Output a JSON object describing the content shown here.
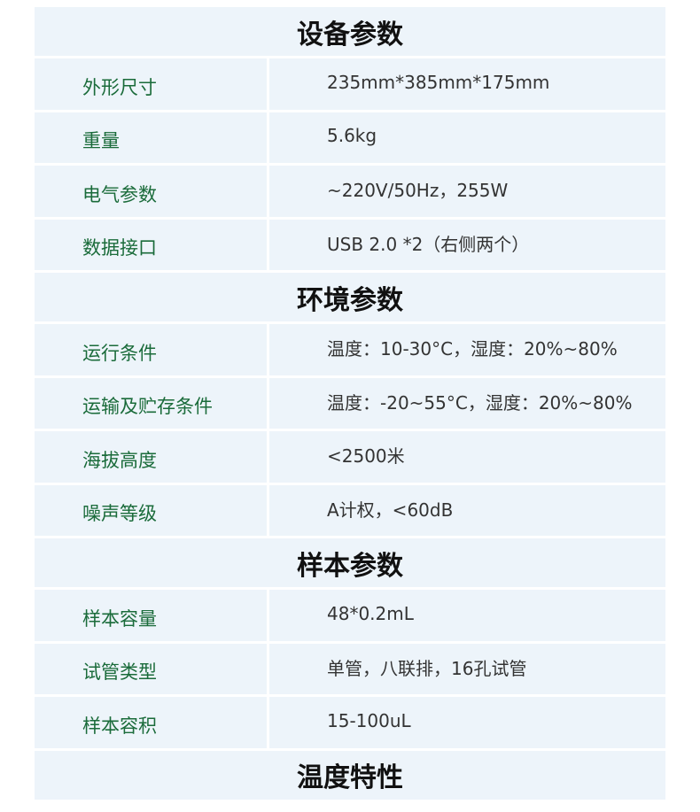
{
  "sections": [
    {
      "title": "设备参数",
      "rows": [
        {
          "label": "外形尺寸",
          "value": "235mm*385mm*175mm"
        },
        {
          "label": "重量",
          "value": "5.6kg"
        },
        {
          "label": "电气参数",
          "value": "~220V/50Hz，255W"
        },
        {
          "label": "数据接口",
          "value": "USB 2.0 *2（右侧两个）"
        }
      ]
    },
    {
      "title": "环境参数",
      "rows": [
        {
          "label": "运行条件",
          "value": "温度：10-30°C，湿度：20%~80%"
        },
        {
          "label": "运输及贮存条件",
          "value": "温度：-20~55°C，湿度：20%~80%"
        },
        {
          "label": "海拔高度",
          "value": "<2500米"
        },
        {
          "label": "噪声等级",
          "value": "A计权，<60dB"
        }
      ]
    },
    {
      "title": "样本参数",
      "rows": [
        {
          "label": "样本容量",
          "value": "48*0.2mL"
        },
        {
          "label": "试管类型",
          "value": "单管，八联排，16孔试管"
        },
        {
          "label": "样本容积",
          "value": "15-100uL"
        }
      ]
    },
    {
      "title": "温度特性",
      "rows": []
    }
  ],
  "colors": {
    "label": "#1a6b3a",
    "cell_bg": "#edf4fa"
  }
}
